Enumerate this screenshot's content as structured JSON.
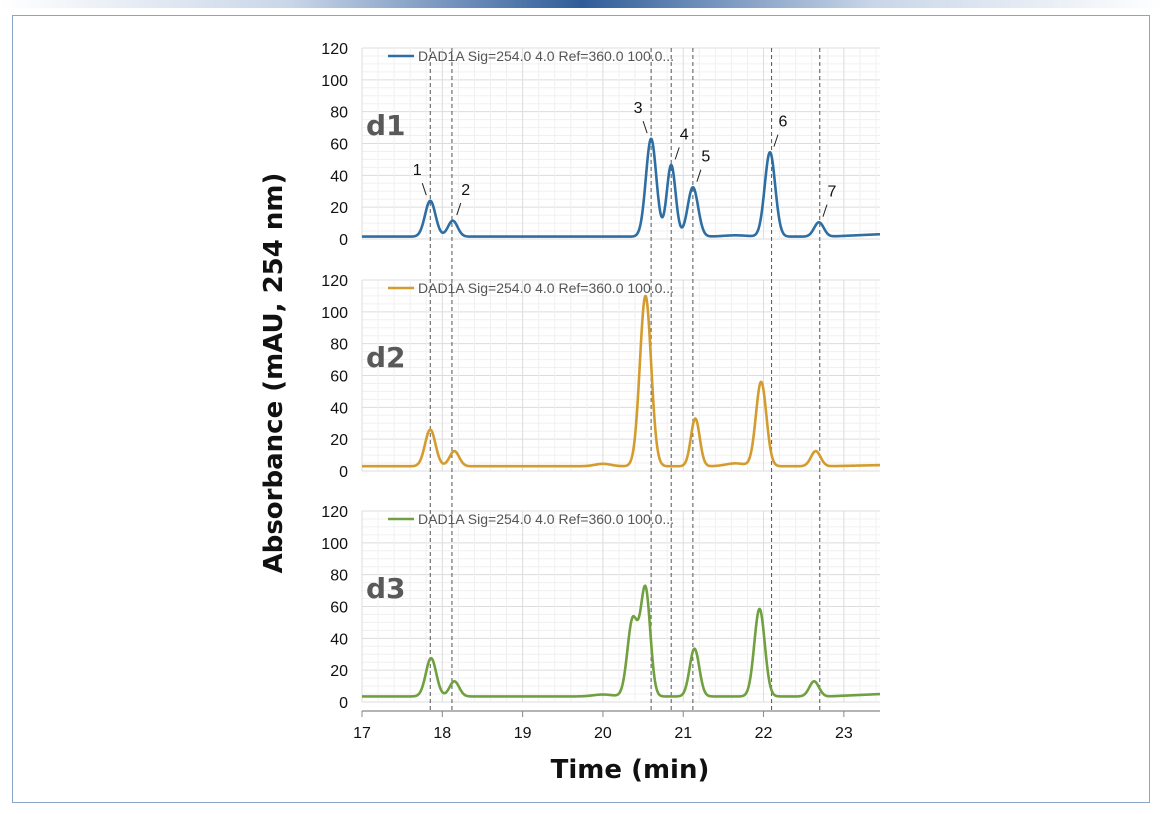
{
  "chart_data": {
    "type": "line",
    "title": "",
    "xlabel": "Time (min)",
    "ylabel": "Absorbance (mAU, 254 nm)",
    "xlim": [
      17,
      23.45
    ],
    "x_ticks": [
      "17",
      "18",
      "19",
      "20",
      "21",
      "22",
      "23"
    ],
    "y_ticks": [
      "0",
      "20",
      "40",
      "60",
      "80",
      "100",
      "120"
    ],
    "ylim": [
      0,
      120
    ],
    "grid": true,
    "legend_placement": "top",
    "reference_lines_x": [
      17.85,
      18.12,
      20.6,
      20.85,
      21.12,
      22.1,
      22.7
    ],
    "panels": [
      {
        "label": "d1",
        "legend": "DAD1A Sig=254.0 4.0 Ref=360.0 100.0...",
        "color": "#2e6ea3",
        "baseline": 1.5,
        "tail_rise": 1.5,
        "peaks": [
          {
            "center": 17.85,
            "height": 22.5,
            "width": 0.065
          },
          {
            "center": 18.13,
            "height": 10,
            "width": 0.06
          },
          {
            "center": 20.6,
            "height": 61.5,
            "width": 0.065
          },
          {
            "center": 20.85,
            "height": 45,
            "width": 0.055
          },
          {
            "center": 21.12,
            "height": 31,
            "width": 0.065
          },
          {
            "center": 21.65,
            "height": 0.8,
            "width": 0.15
          },
          {
            "center": 22.08,
            "height": 53,
            "width": 0.065
          },
          {
            "center": 22.69,
            "height": 9,
            "width": 0.06
          }
        ],
        "peak_labels": [
          {
            "text": "1",
            "x": 17.85,
            "y": 22.5
          },
          {
            "text": "2",
            "x": 18.13,
            "y": 10
          },
          {
            "text": "3",
            "x": 20.6,
            "y": 61.5
          },
          {
            "text": "4",
            "x": 20.85,
            "y": 45
          },
          {
            "text": "5",
            "x": 21.12,
            "y": 31
          },
          {
            "text": "6",
            "x": 22.08,
            "y": 53
          },
          {
            "text": "7",
            "x": 22.69,
            "y": 9
          }
        ]
      },
      {
        "label": "d2",
        "legend": "DAD1A Sig=254.0 4.0 Ref=360.0 100.0...",
        "color": "#d49c2f",
        "baseline": 3,
        "tail_rise": 0.7,
        "peaks": [
          {
            "center": 17.85,
            "height": 23,
            "width": 0.065
          },
          {
            "center": 18.15,
            "height": 9.5,
            "width": 0.06
          },
          {
            "center": 20.0,
            "height": 1.5,
            "width": 0.1
          },
          {
            "center": 20.53,
            "height": 107,
            "width": 0.07
          },
          {
            "center": 21.15,
            "height": 30,
            "width": 0.055
          },
          {
            "center": 21.65,
            "height": 1.8,
            "width": 0.12
          },
          {
            "center": 21.97,
            "height": 53,
            "width": 0.065
          },
          {
            "center": 22.65,
            "height": 9.5,
            "width": 0.06
          }
        ]
      },
      {
        "label": "d3",
        "legend": "DAD1A Sig=254.0 4.0 Ref=360.0 100.0...",
        "color": "#70a040",
        "baseline": 3.5,
        "tail_rise": 1.5,
        "peaks": [
          {
            "center": 17.86,
            "height": 24,
            "width": 0.065
          },
          {
            "center": 18.15,
            "height": 9.5,
            "width": 0.06
          },
          {
            "center": 20.0,
            "height": 1.2,
            "width": 0.12
          },
          {
            "center": 20.37,
            "height": 48,
            "width": 0.065
          },
          {
            "center": 20.53,
            "height": 67,
            "width": 0.06
          },
          {
            "center": 21.14,
            "height": 30,
            "width": 0.06
          },
          {
            "center": 21.95,
            "height": 55,
            "width": 0.065
          },
          {
            "center": 22.63,
            "height": 9.5,
            "width": 0.06
          }
        ]
      }
    ]
  }
}
